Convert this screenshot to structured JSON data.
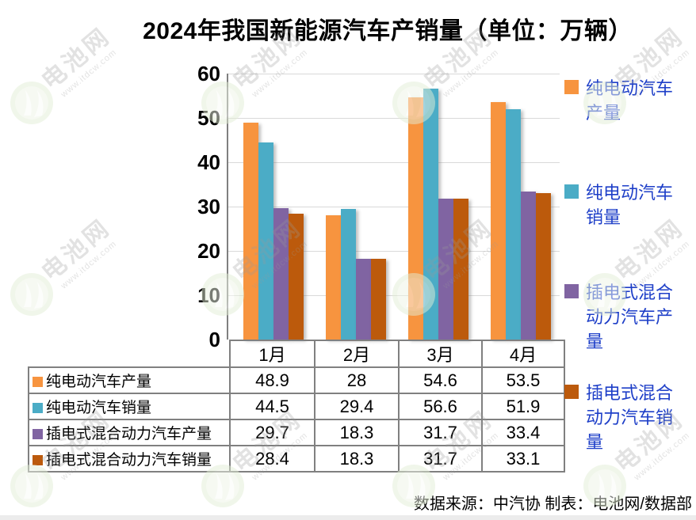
{
  "title": "2024年我国新能源汽车产销量（单位：万辆）",
  "source_note": "数据来源：中汽协  制表：电池网/数据部",
  "watermark": {
    "brand": "电池网",
    "url_text": "www.itdcw.com"
  },
  "colors": {
    "axis": "#7f7f7f",
    "grid": "#d9d9d9",
    "table_border": "#808080",
    "legend_text": "#1e3fc8",
    "title_text": "#000000",
    "watermark_green": "#e3eed6"
  },
  "chart_data": {
    "type": "bar",
    "title": "2024年我国新能源汽车产销量（单位：万辆）",
    "unit": "万辆",
    "categories": [
      "1月",
      "2月",
      "3月",
      "4月"
    ],
    "series": [
      {
        "name": "纯电动汽车产量",
        "color": "#f7943f",
        "values": [
          48.9,
          28,
          54.6,
          53.5
        ]
      },
      {
        "name": "纯电动汽车销量",
        "color": "#4bacc6",
        "values": [
          44.5,
          29.4,
          56.6,
          51.9
        ]
      },
      {
        "name": "插电式混合动力汽车产量",
        "color": "#8064a2",
        "values": [
          29.7,
          18.3,
          31.7,
          33.4
        ]
      },
      {
        "name": "插电式混合动力汽车销量",
        "color": "#bc5a0c",
        "values": [
          28.4,
          18.3,
          31.7,
          33.1
        ]
      }
    ],
    "ylim": [
      0,
      60
    ],
    "yticks": [
      0,
      10,
      20,
      30,
      40,
      50,
      60
    ],
    "grid": true,
    "legend_position": "right",
    "data_table_attached": true
  }
}
